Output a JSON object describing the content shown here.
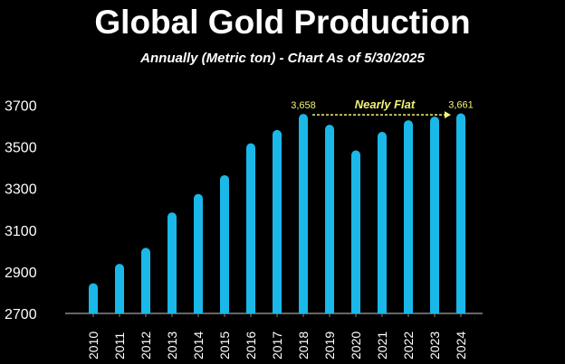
{
  "chart_data": {
    "type": "bar",
    "title": "Global Gold Production",
    "subtitle": "Annually (Metric ton) - Chart As of 5/30/2025",
    "xlabel": "",
    "ylabel": "",
    "categories": [
      "2010",
      "2011",
      "2012",
      "2013",
      "2014",
      "2015",
      "2016",
      "2017",
      "2018",
      "2019",
      "2020",
      "2021",
      "2022",
      "2023",
      "2024"
    ],
    "values": [
      2845,
      2938,
      3015,
      3185,
      3274,
      3364,
      3517,
      3581,
      3658,
      3606,
      3483,
      3572,
      3628,
      3645,
      3661
    ],
    "ylim": [
      2700,
      3750
    ],
    "yticks": [
      2700,
      2900,
      3100,
      3300,
      3500,
      3700
    ],
    "ytick_labels": [
      "2700",
      "2900",
      "3100",
      "3300",
      "3500",
      "3700"
    ],
    "grid": false,
    "bar_color": "#1ab8e8",
    "data_labels": [
      {
        "category": "2018",
        "text": "3,658"
      },
      {
        "category": "2024",
        "text": "3,661"
      }
    ],
    "annotation": {
      "text": "Nearly Flat",
      "from": "2018",
      "to": "2024",
      "color": "#f2f27a"
    }
  }
}
